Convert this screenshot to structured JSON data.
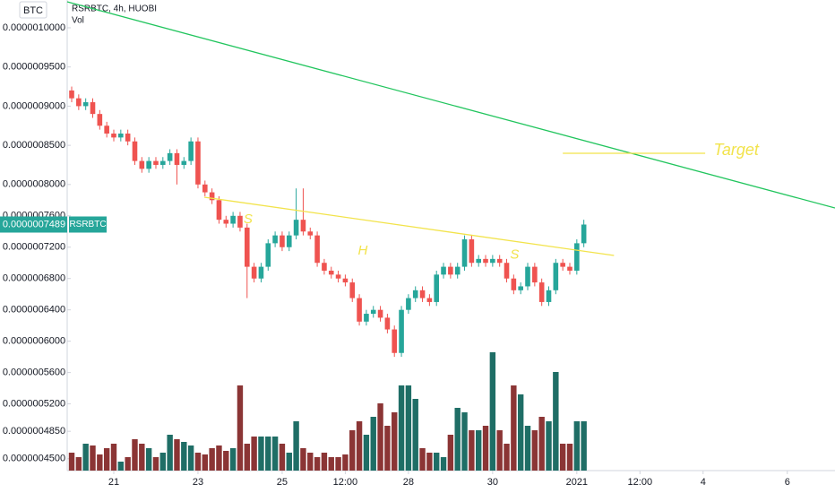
{
  "chart_data": {
    "type": "candlestick",
    "symbol": "RSRBTC, 4h, HUOBI",
    "currency": "BTC",
    "volume_label": "Vol",
    "up_color": "#26a69a",
    "down_color": "#ef5350",
    "volume_up_color": "#1f6e66",
    "volume_down_color": "#8b3535",
    "categories": [
      null,
      null,
      null,
      null,
      null,
      null,
      null,
      null,
      null,
      null,
      null,
      null,
      null,
      null,
      null,
      null,
      null,
      null,
      null,
      null,
      null,
      null,
      null,
      null,
      null,
      null,
      null,
      null,
      null,
      null,
      null,
      null,
      null,
      null,
      null,
      null,
      null,
      null,
      null,
      null,
      null,
      null,
      null,
      null,
      null,
      null,
      null,
      null,
      null,
      null,
      null,
      null,
      null,
      null,
      null,
      null,
      null,
      null,
      null,
      null,
      null,
      null,
      null,
      null,
      null,
      null,
      null,
      null,
      null,
      null,
      null,
      null,
      null,
      null
    ],
    "open": [
      9.2e-07,
      9.1e-07,
      9e-07,
      9.05e-07,
      8.9e-07,
      8.75e-07,
      8.65e-07,
      8.6e-07,
      8.65e-07,
      8.55e-07,
      8.3e-07,
      8.2e-07,
      8.3e-07,
      8.25e-07,
      8.3e-07,
      8.4e-07,
      8.25e-07,
      8.3e-07,
      8.55e-07,
      8e-07,
      7.9e-07,
      7.8e-07,
      7.55e-07,
      7.5e-07,
      7.6e-07,
      7.45e-07,
      6.95e-07,
      6.8e-07,
      6.95e-07,
      7.25e-07,
      7.35e-07,
      7.2e-07,
      7.35e-07,
      7.55e-07,
      7.4e-07,
      7.35e-07,
      7e-07,
      6.9e-07,
      6.85e-07,
      6.8e-07,
      6.75e-07,
      6.55e-07,
      6.25e-07,
      6.35e-07,
      6.4e-07,
      6.3e-07,
      6.15e-07,
      5.85e-07,
      6.4e-07,
      6.55e-07,
      6.65e-07,
      6.55e-07,
      6.5e-07,
      6.85e-07,
      6.95e-07,
      6.85e-07,
      6.95e-07,
      7.3e-07,
      7e-07,
      7.05e-07,
      7e-07,
      7.05e-07,
      7e-07,
      6.8e-07,
      6.65e-07,
      6.7e-07,
      6.95e-07,
      6.75e-07,
      6.5e-07,
      6.65e-07,
      7e-07,
      6.95e-07,
      6.9e-07,
      7.25e-07
    ],
    "close": [
      9.1e-07,
      9e-07,
      9.05e-07,
      8.9e-07,
      8.75e-07,
      8.65e-07,
      8.6e-07,
      8.65e-07,
      8.55e-07,
      8.3e-07,
      8.2e-07,
      8.3e-07,
      8.25e-07,
      8.3e-07,
      8.4e-07,
      8.25e-07,
      8.3e-07,
      8.55e-07,
      8e-07,
      7.9e-07,
      7.8e-07,
      7.55e-07,
      7.5e-07,
      7.6e-07,
      7.45e-07,
      6.95e-07,
      6.8e-07,
      6.95e-07,
      7.25e-07,
      7.35e-07,
      7.2e-07,
      7.35e-07,
      7.55e-07,
      7.4e-07,
      7.35e-07,
      7e-07,
      6.9e-07,
      6.85e-07,
      6.8e-07,
      6.75e-07,
      6.55e-07,
      6.25e-07,
      6.35e-07,
      6.4e-07,
      6.3e-07,
      6.15e-07,
      5.85e-07,
      6.4e-07,
      6.55e-07,
      6.65e-07,
      6.55e-07,
      6.5e-07,
      6.85e-07,
      6.95e-07,
      6.85e-07,
      6.95e-07,
      7.3e-07,
      7e-07,
      7.05e-07,
      7e-07,
      7.05e-07,
      7e-07,
      6.8e-07,
      6.65e-07,
      6.7e-07,
      6.95e-07,
      6.75e-07,
      6.5e-07,
      6.65e-07,
      7e-07,
      6.95e-07,
      6.9e-07,
      7.25e-07,
      7.489e-07
    ],
    "high": [
      9.25e-07,
      9.15e-07,
      9.1e-07,
      9.1e-07,
      8.95e-07,
      8.8e-07,
      8.7e-07,
      8.7e-07,
      8.7e-07,
      8.6e-07,
      8.35e-07,
      8.35e-07,
      8.35e-07,
      8.35e-07,
      8.45e-07,
      8.45e-07,
      8.35e-07,
      8.6e-07,
      8.6e-07,
      8.05e-07,
      7.95e-07,
      7.85e-07,
      7.6e-07,
      7.65e-07,
      7.65e-07,
      7.5e-07,
      7e-07,
      7e-07,
      7.3e-07,
      7.4e-07,
      7.4e-07,
      7.4e-07,
      7.95e-07,
      7.95e-07,
      7.45e-07,
      7.4e-07,
      7.05e-07,
      6.95e-07,
      6.9e-07,
      6.85e-07,
      6.8e-07,
      6.6e-07,
      6.4e-07,
      6.45e-07,
      6.45e-07,
      6.35e-07,
      6.2e-07,
      6.45e-07,
      6.6e-07,
      6.7e-07,
      6.7e-07,
      6.6e-07,
      6.9e-07,
      7e-07,
      7e-07,
      7e-07,
      7.35e-07,
      7.35e-07,
      7.1e-07,
      7.1e-07,
      7.1e-07,
      7.1e-07,
      7.05e-07,
      6.85e-07,
      6.75e-07,
      7e-07,
      7e-07,
      6.8e-07,
      6.7e-07,
      7.05e-07,
      7.05e-07,
      7e-07,
      7.3e-07,
      7.55e-07
    ],
    "low": [
      9.05e-07,
      8.95e-07,
      8.95e-07,
      8.85e-07,
      8.7e-07,
      8.6e-07,
      8.55e-07,
      8.55e-07,
      8.5e-07,
      8.25e-07,
      8.15e-07,
      8.15e-07,
      8.2e-07,
      8.2e-07,
      8.25e-07,
      8e-07,
      8.2e-07,
      8.25e-07,
      7.95e-07,
      7.85e-07,
      7.75e-07,
      7.5e-07,
      7.45e-07,
      7.45e-07,
      7.4e-07,
      6.55e-07,
      6.75e-07,
      6.75e-07,
      6.9e-07,
      7.2e-07,
      7.15e-07,
      7.15e-07,
      7.3e-07,
      7.35e-07,
      7.3e-07,
      6.95e-07,
      6.85e-07,
      6.8e-07,
      6.75e-07,
      6.7e-07,
      6.5e-07,
      6.2e-07,
      6.2e-07,
      6.3e-07,
      6.25e-07,
      6.1e-07,
      5.8e-07,
      5.8e-07,
      6.35e-07,
      6.5e-07,
      6.5e-07,
      6.45e-07,
      6.45e-07,
      6.8e-07,
      6.8e-07,
      6.8e-07,
      6.9e-07,
      6.95e-07,
      6.95e-07,
      6.95e-07,
      6.95e-07,
      6.95e-07,
      6.75e-07,
      6.6e-07,
      6.6e-07,
      6.65e-07,
      6.7e-07,
      6.45e-07,
      6.45e-07,
      6.6e-07,
      6.9e-07,
      6.85e-07,
      6.85e-07,
      7.2e-07
    ],
    "volume": [
      20,
      15,
      30,
      28,
      18,
      25,
      30,
      10,
      15,
      35,
      30,
      25,
      15,
      20,
      40,
      35,
      32,
      28,
      20,
      18,
      25,
      28,
      22,
      25,
      95,
      30,
      38,
      38,
      38,
      38,
      30,
      20,
      55,
      25,
      20,
      15,
      20,
      15,
      15,
      18,
      45,
      55,
      40,
      60,
      75,
      50,
      65,
      95,
      95,
      80,
      25,
      20,
      20,
      15,
      40,
      70,
      65,
      45,
      45,
      50,
      132,
      45,
      30,
      95,
      85,
      50,
      45,
      60,
      55,
      110,
      30,
      30,
      55,
      55
    ],
    "xlim": [
      -0.64,
      108.8
    ],
    "ylim": [
      4.3485e-07,
      1.03547e-06
    ],
    "xticks": [
      {
        "value": 6,
        "label": "21"
      },
      {
        "value": 18,
        "label": "23"
      },
      {
        "value": 30,
        "label": "25"
      },
      {
        "value": 39,
        "label": "12:00"
      },
      {
        "value": 48,
        "label": "28"
      },
      {
        "value": 60,
        "label": "30"
      },
      {
        "value": 72,
        "label": "2021"
      },
      {
        "value": 81,
        "label": "12:00"
      },
      {
        "value": 90,
        "label": "4"
      },
      {
        "value": 102,
        "label": "6"
      }
    ],
    "yticks": [
      {
        "value": 1e-06,
        "label": "0.0000010000"
      },
      {
        "value": 9.5e-07,
        "label": "0.0000009500"
      },
      {
        "value": 9e-07,
        "label": "0.0000009000"
      },
      {
        "value": 8.5e-07,
        "label": "0.0000008500"
      },
      {
        "value": 8e-07,
        "label": "0.0000008000"
      },
      {
        "value": 7.6e-07,
        "label": "0.0000007600"
      },
      {
        "value": 7.2e-07,
        "label": "0.0000007200"
      },
      {
        "value": 6.8e-07,
        "label": "0.0000006800"
      },
      {
        "value": 6.4e-07,
        "label": "0.0000006400"
      },
      {
        "value": 6e-07,
        "label": "0.0000006000"
      },
      {
        "value": 5.6e-07,
        "label": "0.0000005600"
      },
      {
        "value": 5.2e-07,
        "label": "0.0000005200"
      },
      {
        "value": 4.85e-07,
        "label": "0.0000004850"
      },
      {
        "value": 4.5e-07,
        "label": "0.0000004500"
      }
    ],
    "last_price": {
      "value": 7.489e-07,
      "label": "0.0000007489"
    },
    "symbol_badge": "RSRBTC",
    "trend_lines": [
      {
        "color": "#22c55e",
        "points": [
          [
            -0.64,
            1.0332e-06
          ],
          [
            108.8,
            7.7e-07
          ]
        ]
      },
      {
        "color": "#f2e34b",
        "points": [
          [
            18.9,
            7.838e-07
          ],
          [
            77.3,
            7.094e-07
          ]
        ]
      },
      {
        "color": "#f2e34b",
        "points": [
          [
            70,
            8.398e-07
          ],
          [
            90.3,
            8.398e-07
          ]
        ]
      }
    ],
    "annotations": [
      {
        "text": "Target",
        "at": [
          91.5,
          8.43e-07
        ],
        "size": 18
      },
      {
        "text": "S",
        "at": [
          24.5,
          7.55e-07
        ],
        "size": 15
      },
      {
        "text": "H",
        "at": [
          40.8,
          7.15e-07
        ],
        "size": 15
      },
      {
        "text": "S",
        "at": [
          62.5,
          7.1e-07
        ],
        "size": 15
      }
    ]
  }
}
